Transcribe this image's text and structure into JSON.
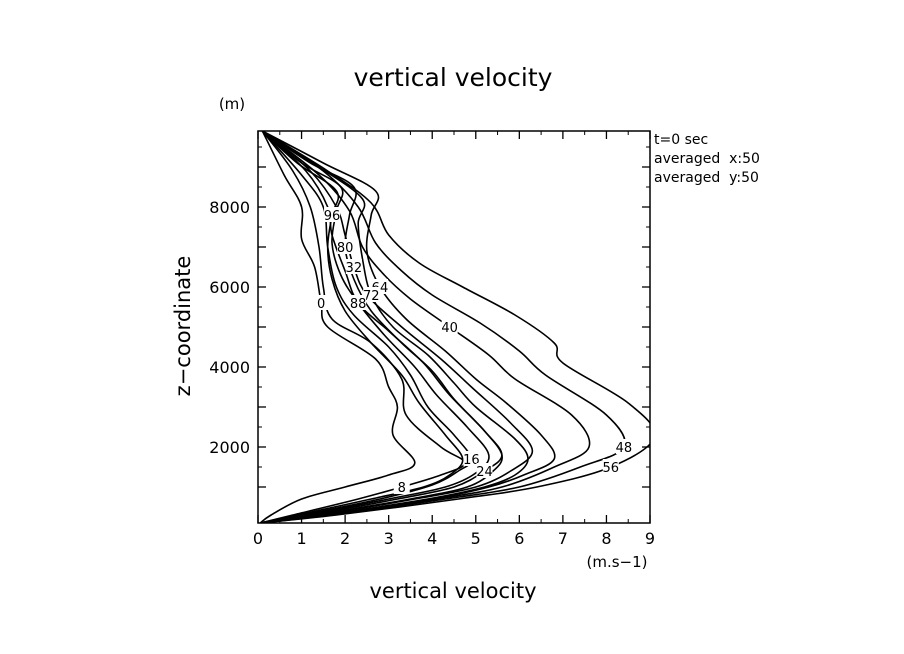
{
  "chart_data": {
    "type": "line",
    "title": "vertical velocity",
    "xlabel": "vertical velocity",
    "ylabel": "z−coordinate",
    "x_unit": "(m.s−1)",
    "y_unit": "(m)",
    "xlim": [
      0,
      9
    ],
    "ylim": [
      100,
      9900
    ],
    "x_ticks": [
      0,
      1,
      2,
      3,
      4,
      5,
      6,
      7,
      8,
      9
    ],
    "y_ticks": [
      2000,
      4000,
      6000,
      8000
    ],
    "info_lines": [
      "t=0 sec",
      "averaged  x:50",
      "averaged  y:50"
    ],
    "line_color": "#000000",
    "series": [
      {
        "label": "0",
        "points": [
          [
            0.05,
            100
          ],
          [
            0.3,
            300
          ],
          [
            1.0,
            700
          ],
          [
            2.0,
            1000
          ],
          [
            3.0,
            1300
          ],
          [
            3.6,
            1600
          ],
          [
            3.1,
            2300
          ],
          [
            3.2,
            3000
          ],
          [
            3.0,
            3500
          ],
          [
            2.7,
            4200
          ],
          [
            1.6,
            5000
          ],
          [
            1.45,
            5600
          ],
          [
            1.3,
            6500
          ],
          [
            1.0,
            7200
          ],
          [
            1.0,
            8000
          ],
          [
            0.6,
            8800
          ],
          [
            0.1,
            9900
          ]
        ]
      },
      {
        "label": "8",
        "points": [
          [
            0.05,
            100
          ],
          [
            0.8,
            300
          ],
          [
            2.3,
            700
          ],
          [
            3.3,
            1000
          ],
          [
            4.2,
            1300
          ],
          [
            4.75,
            1600
          ],
          [
            4.2,
            2000
          ],
          [
            3.4,
            2800
          ],
          [
            3.3,
            3700
          ],
          [
            2.6,
            4600
          ],
          [
            1.7,
            5200
          ],
          [
            1.5,
            6000
          ],
          [
            1.4,
            7000
          ],
          [
            1.2,
            8000
          ],
          [
            0.8,
            8900
          ],
          [
            0.1,
            9900
          ]
        ]
      },
      {
        "label": "16",
        "points": [
          [
            0.05,
            100
          ],
          [
            1.0,
            300
          ],
          [
            2.8,
            700
          ],
          [
            4.0,
            1050
          ],
          [
            4.6,
            1400
          ],
          [
            4.9,
            1700
          ],
          [
            4.5,
            2300
          ],
          [
            3.9,
            3000
          ],
          [
            3.5,
            3800
          ],
          [
            3.0,
            4500
          ],
          [
            2.2,
            5300
          ],
          [
            1.8,
            6000
          ],
          [
            1.6,
            7000
          ],
          [
            1.5,
            8000
          ],
          [
            1.0,
            8800
          ],
          [
            0.1,
            9900
          ]
        ]
      },
      {
        "label": "24",
        "points": [
          [
            0.05,
            100
          ],
          [
            1.2,
            300
          ],
          [
            3.2,
            700
          ],
          [
            4.5,
            1000
          ],
          [
            5.2,
            1400
          ],
          [
            5.6,
            1800
          ],
          [
            5.2,
            2400
          ],
          [
            4.4,
            3300
          ],
          [
            3.8,
            4100
          ],
          [
            3.0,
            4900
          ],
          [
            2.3,
            5600
          ],
          [
            2.0,
            6400
          ],
          [
            1.7,
            7300
          ],
          [
            1.6,
            8000
          ],
          [
            1.1,
            8900
          ],
          [
            0.1,
            9900
          ]
        ]
      },
      {
        "label": "32",
        "points": [
          [
            0.05,
            100
          ],
          [
            1.4,
            300
          ],
          [
            3.6,
            700
          ],
          [
            5.0,
            1000
          ],
          [
            5.8,
            1400
          ],
          [
            6.3,
            1900
          ],
          [
            5.8,
            2600
          ],
          [
            4.9,
            3500
          ],
          [
            4.2,
            4200
          ],
          [
            3.3,
            5000
          ],
          [
            2.5,
            5800
          ],
          [
            2.2,
            6500
          ],
          [
            2.0,
            7300
          ],
          [
            1.8,
            8000
          ],
          [
            1.2,
            8900
          ],
          [
            0.1,
            9900
          ]
        ]
      },
      {
        "label": "40",
        "points": [
          [
            0.05,
            100
          ],
          [
            1.6,
            300
          ],
          [
            4.1,
            700
          ],
          [
            5.6,
            1000
          ],
          [
            6.8,
            1500
          ],
          [
            7.6,
            2000
          ],
          [
            7.2,
            2800
          ],
          [
            5.9,
            3700
          ],
          [
            5.3,
            4300
          ],
          [
            4.4,
            5000
          ],
          [
            3.5,
            5700
          ],
          [
            2.9,
            6300
          ],
          [
            2.4,
            7000
          ],
          [
            2.1,
            7900
          ],
          [
            1.4,
            8800
          ],
          [
            0.1,
            9900
          ]
        ]
      },
      {
        "label": "48",
        "points": [
          [
            0.05,
            100
          ],
          [
            1.7,
            300
          ],
          [
            4.3,
            700
          ],
          [
            6.0,
            1000
          ],
          [
            7.4,
            1500
          ],
          [
            8.4,
            2000
          ],
          [
            8.0,
            2800
          ],
          [
            6.6,
            3800
          ],
          [
            6.0,
            4400
          ],
          [
            5.1,
            5100
          ],
          [
            4.0,
            5800
          ],
          [
            3.3,
            6400
          ],
          [
            2.7,
            7100
          ],
          [
            2.3,
            8000
          ],
          [
            1.5,
            8900
          ],
          [
            0.1,
            9900
          ]
        ]
      },
      {
        "label": "56",
        "points": [
          [
            0.05,
            100
          ],
          [
            1.8,
            300
          ],
          [
            4.6,
            700
          ],
          [
            6.4,
            1000
          ],
          [
            8.1,
            1500
          ],
          [
            9.1,
            2250
          ],
          [
            8.5,
            3100
          ],
          [
            7.0,
            4100
          ],
          [
            6.8,
            4600
          ],
          [
            5.9,
            5300
          ],
          [
            4.7,
            6000
          ],
          [
            3.7,
            6600
          ],
          [
            3.0,
            7300
          ],
          [
            2.6,
            8100
          ],
          [
            1.6,
            8900
          ],
          [
            0.1,
            9900
          ]
        ]
      },
      {
        "label": "64",
        "points": [
          [
            0.05,
            100
          ],
          [
            1.6,
            300
          ],
          [
            4.0,
            700
          ],
          [
            5.3,
            1000
          ],
          [
            6.1,
            1300
          ],
          [
            6.8,
            1700
          ],
          [
            6.5,
            2300
          ],
          [
            5.7,
            3100
          ],
          [
            5.0,
            3700
          ],
          [
            4.3,
            4400
          ],
          [
            3.4,
            5200
          ],
          [
            2.8,
            6000
          ],
          [
            2.5,
            6900
          ],
          [
            2.6,
            7800
          ],
          [
            2.7,
            8400
          ],
          [
            1.5,
            9100
          ],
          [
            0.1,
            9900
          ]
        ]
      },
      {
        "label": "72",
        "points": [
          [
            0.05,
            100
          ],
          [
            1.5,
            300
          ],
          [
            3.9,
            700
          ],
          [
            5.2,
            1000
          ],
          [
            5.9,
            1300
          ],
          [
            6.2,
            1700
          ],
          [
            5.9,
            2200
          ],
          [
            5.0,
            3000
          ],
          [
            4.5,
            3600
          ],
          [
            3.9,
            4300
          ],
          [
            3.1,
            5000
          ],
          [
            2.6,
            5800
          ],
          [
            2.4,
            6700
          ],
          [
            2.3,
            7600
          ],
          [
            2.4,
            8200
          ],
          [
            1.4,
            9000
          ],
          [
            0.1,
            9900
          ]
        ]
      },
      {
        "label": "80",
        "points": [
          [
            0.05,
            100
          ],
          [
            1.3,
            300
          ],
          [
            3.5,
            700
          ],
          [
            4.8,
            1000
          ],
          [
            5.4,
            1400
          ],
          [
            5.6,
            1800
          ],
          [
            5.2,
            2400
          ],
          [
            4.5,
            3200
          ],
          [
            4.0,
            3900
          ],
          [
            3.3,
            4600
          ],
          [
            2.6,
            5400
          ],
          [
            2.2,
            6200
          ],
          [
            2.0,
            7000
          ],
          [
            2.1,
            7800
          ],
          [
            2.2,
            8500
          ],
          [
            1.2,
            9100
          ],
          [
            0.1,
            9900
          ]
        ]
      },
      {
        "label": "88",
        "points": [
          [
            0.05,
            100
          ],
          [
            1.1,
            300
          ],
          [
            3.0,
            700
          ],
          [
            4.3,
            1000
          ],
          [
            5.0,
            1350
          ],
          [
            5.3,
            1800
          ],
          [
            4.8,
            2500
          ],
          [
            4.1,
            3300
          ],
          [
            3.6,
            4000
          ],
          [
            2.9,
            4800
          ],
          [
            2.3,
            5600
          ],
          [
            1.9,
            6300
          ],
          [
            1.7,
            7100
          ],
          [
            1.8,
            7900
          ],
          [
            1.9,
            8500
          ],
          [
            1.0,
            9100
          ],
          [
            0.1,
            9900
          ]
        ]
      },
      {
        "label": "96",
        "points": [
          [
            0.05,
            100
          ],
          [
            0.9,
            300
          ],
          [
            2.6,
            700
          ],
          [
            3.8,
            1000
          ],
          [
            4.4,
            1300
          ],
          [
            4.7,
            1700
          ],
          [
            4.3,
            2300
          ],
          [
            3.7,
            3100
          ],
          [
            3.3,
            3800
          ],
          [
            2.6,
            4600
          ],
          [
            2.0,
            5400
          ],
          [
            1.7,
            6200
          ],
          [
            1.6,
            7000
          ],
          [
            1.7,
            7800
          ],
          [
            1.8,
            8400
          ],
          [
            0.9,
            9100
          ],
          [
            0.1,
            9900
          ]
        ]
      }
    ]
  }
}
